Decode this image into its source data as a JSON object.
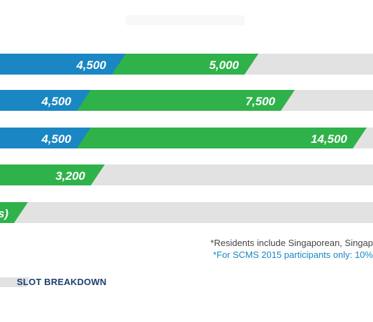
{
  "chart_data": {
    "type": "bar",
    "categories": [
      "",
      "",
      "",
      "",
      ""
    ],
    "series": [
      {
        "values": [
          4500,
          4500,
          4500,
          null,
          null
        ]
      },
      {
        "values": [
          5000,
          7500,
          14500,
          3200,
          null
        ]
      }
    ],
    "bar_labels": [
      [
        "4,500",
        "5,000"
      ],
      [
        "4,500",
        "7,500"
      ],
      [
        "4,500",
        "14,500"
      ],
      [
        "",
        "3,200"
      ],
      [
        "",
        "s)"
      ]
    ],
    "colors": {
      "series_1": "#1a86c3",
      "series_2": "#2fb24a",
      "track": "#e2e2e2"
    }
  },
  "footnotes": {
    "residents": "*Residents include Singaporean, Singap",
    "scms": "*For SCMS 2015 participants only: 10%"
  },
  "legend": {
    "label": "SLOT BREAKDOWN"
  }
}
